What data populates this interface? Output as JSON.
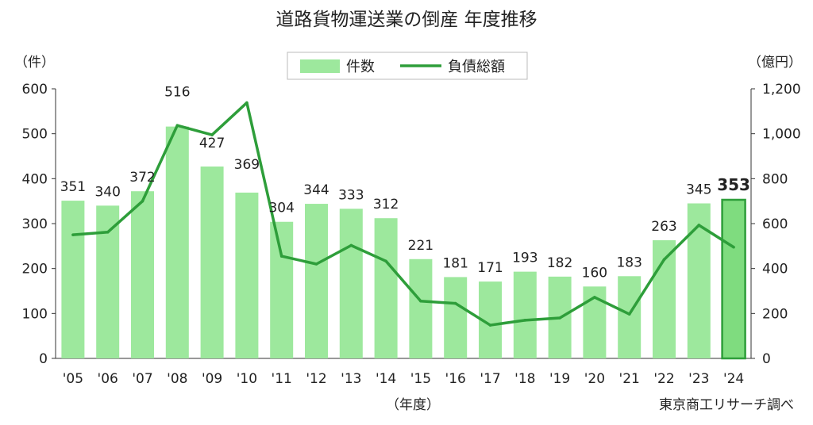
{
  "chart_data": {
    "type": "bar",
    "title": "道路貨物運送業の倒産 年度推移",
    "categories": [
      "'05",
      "'06",
      "'07",
      "'08",
      "'09",
      "'10",
      "'11",
      "'12",
      "'13",
      "'14",
      "'15",
      "'16",
      "'17",
      "'18",
      "'19",
      "'20",
      "'21",
      "'22",
      "'23",
      "'24"
    ],
    "series": [
      {
        "name": "件数",
        "type": "bar",
        "axis": "left",
        "color": "#9de89d",
        "highlight_color": "#7fdc7f",
        "highlight_stroke": "#2e9e3a",
        "values": [
          351,
          340,
          372,
          516,
          427,
          369,
          304,
          344,
          333,
          312,
          221,
          181,
          171,
          193,
          182,
          160,
          183,
          263,
          345,
          353
        ]
      },
      {
        "name": "負債総額",
        "type": "line",
        "axis": "right",
        "color": "#2e9e3a",
        "values": [
          550,
          562,
          700,
          1037,
          995,
          1138,
          455,
          420,
          503,
          433,
          255,
          245,
          148,
          170,
          180,
          272,
          197,
          440,
          593,
          495
        ]
      }
    ],
    "data_labels": [
      "351",
      "340",
      "372",
      "516",
      "427",
      "369",
      "304",
      "344",
      "333",
      "312",
      "221",
      "181",
      "171",
      "193",
      "182",
      "160",
      "183",
      "263",
      "345",
      "353"
    ],
    "highlight_index": 19,
    "y_left": {
      "unit_label": "（件）",
      "range": [
        0,
        600
      ],
      "ticks": [
        0,
        100,
        200,
        300,
        400,
        500,
        600
      ],
      "tick_labels": [
        "0",
        "100",
        "200",
        "300",
        "400",
        "500",
        "600"
      ]
    },
    "y_right": {
      "unit_label": "（億円）",
      "range": [
        0,
        1200
      ],
      "ticks": [
        0,
        200,
        400,
        600,
        800,
        1000,
        1200
      ],
      "tick_labels": [
        "0",
        "200",
        "400",
        "600",
        "800",
        "1,000",
        "1,200"
      ]
    },
    "x_unit_label": "（年度）",
    "source": "東京商工リサーチ調べ",
    "legend": {
      "placement": "top-center"
    },
    "grid": false
  }
}
